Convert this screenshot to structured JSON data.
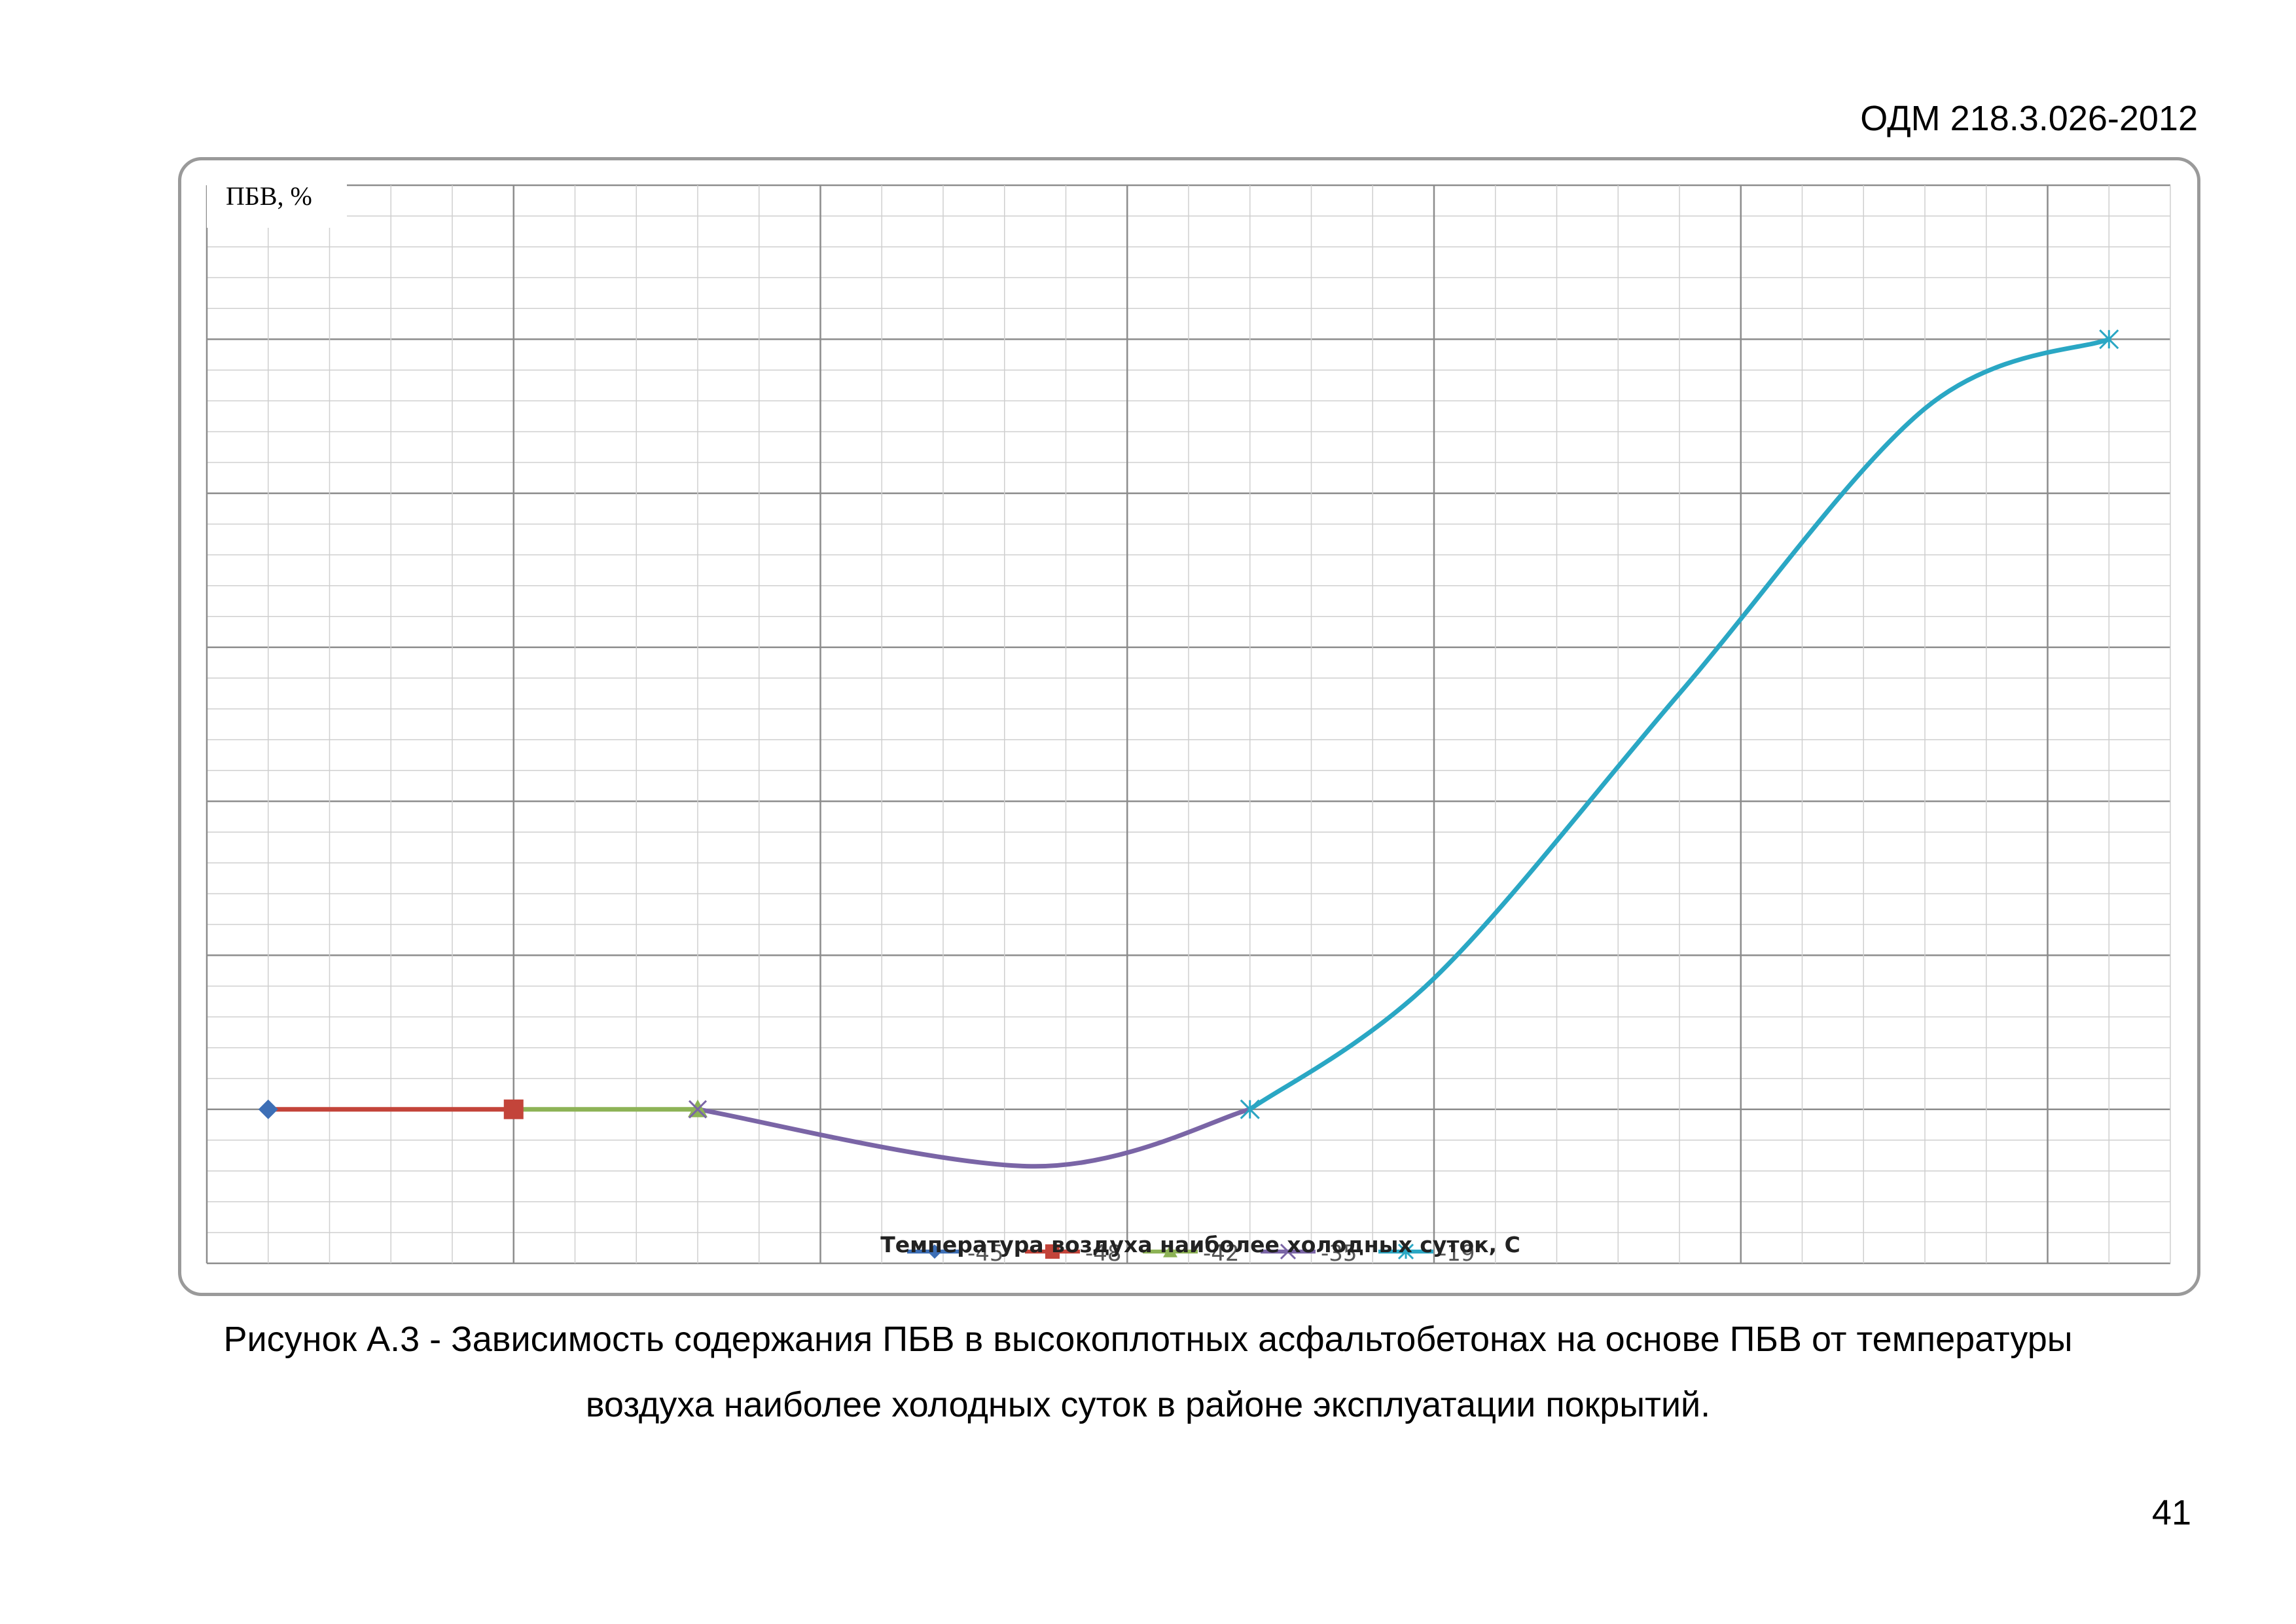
{
  "header": {
    "doc_code": "ОДМ 218.3.026-2012"
  },
  "caption": {
    "line1": "Рисунок А.3 - Зависимость содержания ПБВ в высокоплотных асфальтобетонах на основе ПБВ от температуры",
    "line2": "воздуха наиболее холодных суток в районе эксплуатации покрытий."
  },
  "page_number": "41",
  "chart_data": {
    "type": "line",
    "title": "",
    "ylabel": "ПБВ, %",
    "xlabel": "Температура воздуха наиболее холодных суток, С",
    "grid": true,
    "legend_position": "bottom",
    "xlim": [
      0,
      32
    ],
    "ylim": [
      0,
      7
    ],
    "series": [
      {
        "name": "-45",
        "color": "#3d6fb6",
        "marker": "diamond",
        "x": [
          1
        ],
        "y": [
          1
        ]
      },
      {
        "name": "-48",
        "color": "#c3443a",
        "marker": "square",
        "x": [
          1,
          5
        ],
        "y": [
          1,
          1
        ]
      },
      {
        "name": "-42",
        "color": "#8db356",
        "marker": "triangle",
        "x": [
          5,
          8
        ],
        "y": [
          1,
          1
        ]
      },
      {
        "name": "-35",
        "color": "#7a65a6",
        "marker": "x",
        "x": [
          8,
          13.5,
          17
        ],
        "y": [
          1,
          0.63,
          1
        ]
      },
      {
        "name": "-19",
        "color": "#2aa7c4",
        "marker": "star",
        "x": [
          17,
          20,
          24,
          28,
          31
        ],
        "y": [
          1,
          1.85,
          3.7,
          5.55,
          6
        ]
      }
    ]
  }
}
